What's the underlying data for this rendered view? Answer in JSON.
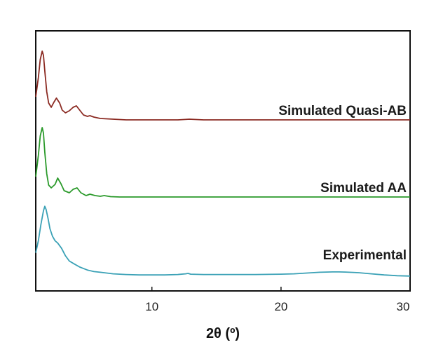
{
  "chart_data": {
    "type": "line",
    "xlabel": "2θ (º)",
    "ylabel": "",
    "xlim": [
      1,
      30
    ],
    "xticks": [
      10,
      20,
      30
    ],
    "yticks_shown": false,
    "grid": false,
    "legend": "none",
    "series": [
      {
        "name": "Simulated Quasi-AB",
        "color": "#8b2a22",
        "x": [
          1.0,
          1.2,
          1.35,
          1.5,
          1.6,
          1.7,
          1.85,
          2.0,
          2.2,
          2.4,
          2.6,
          2.85,
          3.05,
          3.3,
          3.6,
          3.9,
          4.15,
          4.4,
          4.7,
          5.0,
          5.2,
          5.5,
          6.0,
          7.0,
          8.0,
          9.0,
          10.0,
          12.0,
          12.9,
          14.0,
          16.0,
          18.0,
          20.0,
          22.0,
          24.0,
          26.0,
          28.0,
          30.0
        ],
        "y": [
          0.35,
          0.62,
          0.88,
          1.0,
          0.94,
          0.72,
          0.42,
          0.26,
          0.2,
          0.27,
          0.33,
          0.26,
          0.16,
          0.12,
          0.15,
          0.2,
          0.22,
          0.16,
          0.09,
          0.07,
          0.08,
          0.06,
          0.04,
          0.03,
          0.02,
          0.02,
          0.02,
          0.02,
          0.03,
          0.02,
          0.02,
          0.02,
          0.02,
          0.02,
          0.02,
          0.02,
          0.02,
          0.02
        ]
      },
      {
        "name": "Simulated AA",
        "color": "#2b9a2b",
        "x": [
          1.0,
          1.2,
          1.35,
          1.5,
          1.6,
          1.7,
          1.85,
          2.0,
          2.2,
          2.5,
          2.7,
          2.95,
          3.2,
          3.6,
          3.9,
          4.2,
          4.5,
          4.9,
          5.2,
          5.6,
          6.0,
          6.3,
          6.8,
          7.5,
          8.5,
          10.0,
          14.0,
          18.0,
          22.0,
          26.0,
          30.0
        ],
        "y": [
          0.3,
          0.6,
          0.88,
          1.0,
          0.92,
          0.65,
          0.34,
          0.18,
          0.14,
          0.19,
          0.28,
          0.2,
          0.1,
          0.07,
          0.12,
          0.14,
          0.07,
          0.03,
          0.05,
          0.03,
          0.02,
          0.03,
          0.015,
          0.01,
          0.01,
          0.01,
          0.01,
          0.01,
          0.01,
          0.01,
          0.01
        ]
      },
      {
        "name": "Experimental",
        "color": "#3aa1b6",
        "x": [
          1.0,
          1.2,
          1.4,
          1.6,
          1.7,
          1.8,
          1.95,
          2.1,
          2.3,
          2.5,
          2.7,
          3.0,
          3.3,
          3.6,
          4.0,
          4.4,
          5.0,
          5.5,
          6.0,
          7.0,
          8.0,
          9.0,
          10.0,
          11.0,
          12.0,
          12.6,
          12.8,
          13.0,
          14.0,
          16.0,
          18.0,
          20.0,
          21.0,
          22.0,
          23.0,
          24.0,
          24.5,
          25.0,
          26.0,
          27.0,
          28.0,
          29.0,
          30.0
        ],
        "y": [
          0.34,
          0.5,
          0.72,
          0.9,
          0.96,
          0.92,
          0.8,
          0.66,
          0.56,
          0.5,
          0.47,
          0.4,
          0.3,
          0.23,
          0.19,
          0.15,
          0.11,
          0.09,
          0.08,
          0.06,
          0.05,
          0.045,
          0.045,
          0.045,
          0.05,
          0.06,
          0.065,
          0.055,
          0.05,
          0.05,
          0.05,
          0.055,
          0.06,
          0.07,
          0.08,
          0.085,
          0.085,
          0.083,
          0.075,
          0.06,
          0.045,
          0.035,
          0.03
        ]
      }
    ]
  }
}
